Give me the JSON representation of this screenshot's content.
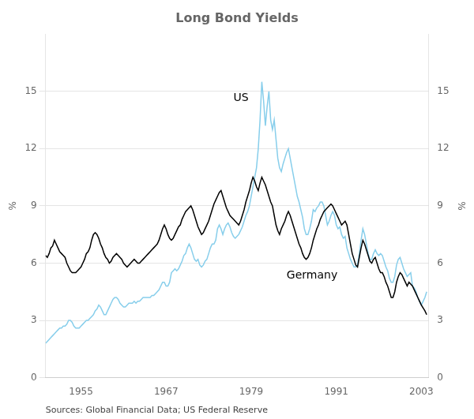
{
  "chart_data": {
    "type": "line",
    "title": "Long Bond Yields",
    "ylabel": "%",
    "y2label": "%",
    "xlim": [
      1950,
      2004
    ],
    "xticks": [
      1955,
      1967,
      1979,
      1991,
      2003
    ],
    "ylim": [
      0,
      18
    ],
    "yticks": [
      0,
      3,
      6,
      9,
      12,
      15
    ],
    "y2lim": [
      0,
      18
    ],
    "y2ticks": [
      0,
      3,
      6,
      9,
      12,
      15
    ],
    "grid": "y",
    "annotations": [
      {
        "text": "US",
        "x": 1976.5,
        "y": 14.5
      },
      {
        "text": "Germany",
        "x": 1984,
        "y": 5.2
      },
      {
        "text": "Sources: Global Financial Data; US Federal Reserve"
      }
    ],
    "x": [
      1950,
      1950.25,
      1950.5,
      1950.75,
      1951,
      1951.25,
      1951.5,
      1951.75,
      1952,
      1952.25,
      1952.5,
      1952.75,
      1953,
      1953.25,
      1953.5,
      1953.75,
      1954,
      1954.25,
      1954.5,
      1954.75,
      1955,
      1955.25,
      1955.5,
      1955.75,
      1956,
      1956.25,
      1956.5,
      1956.75,
      1957,
      1957.25,
      1957.5,
      1957.75,
      1958,
      1958.25,
      1958.5,
      1958.75,
      1959,
      1959.25,
      1959.5,
      1959.75,
      1960,
      1960.25,
      1960.5,
      1960.75,
      1961,
      1961.25,
      1961.5,
      1961.75,
      1962,
      1962.25,
      1962.5,
      1962.75,
      1963,
      1963.25,
      1963.5,
      1963.75,
      1964,
      1964.25,
      1964.5,
      1964.75,
      1965,
      1965.25,
      1965.5,
      1965.75,
      1966,
      1966.25,
      1966.5,
      1966.75,
      1967,
      1967.25,
      1967.5,
      1967.75,
      1968,
      1968.25,
      1968.5,
      1968.75,
      1969,
      1969.25,
      1969.5,
      1969.75,
      1970,
      1970.25,
      1970.5,
      1970.75,
      1971,
      1971.25,
      1971.5,
      1971.75,
      1972,
      1972.25,
      1972.5,
      1972.75,
      1973,
      1973.25,
      1973.5,
      1973.75,
      1974,
      1974.25,
      1974.5,
      1974.75,
      1975,
      1975.25,
      1975.5,
      1975.75,
      1976,
      1976.25,
      1976.5,
      1976.75,
      1977,
      1977.25,
      1977.5,
      1977.75,
      1978,
      1978.25,
      1978.5,
      1978.75,
      1979,
      1979.25,
      1979.5,
      1979.75,
      1980,
      1980.25,
      1980.5,
      1980.75,
      1981,
      1981.25,
      1981.5,
      1981.75,
      1982,
      1982.25,
      1982.5,
      1982.75,
      1983,
      1983.25,
      1983.5,
      1983.75,
      1984,
      1984.25,
      1984.5,
      1984.75,
      1985,
      1985.25,
      1985.5,
      1985.75,
      1986,
      1986.25,
      1986.5,
      1986.75,
      1987,
      1987.25,
      1987.5,
      1987.75,
      1988,
      1988.25,
      1988.5,
      1988.75,
      1989,
      1989.25,
      1989.5,
      1989.75,
      1990,
      1990.25,
      1990.5,
      1990.75,
      1991,
      1991.25,
      1991.5,
      1991.75,
      1992,
      1992.25,
      1992.5,
      1992.75,
      1993,
      1993.25,
      1993.5,
      1993.75,
      1994,
      1994.25,
      1994.5,
      1994.75,
      1995,
      1995.25,
      1995.5,
      1995.75,
      1996,
      1996.25,
      1996.5,
      1996.75,
      1997,
      1997.25,
      1997.5,
      1997.75,
      1998,
      1998.25,
      1998.5,
      1998.75,
      1999,
      1999.25,
      1999.5,
      1999.75,
      2000,
      2000.25,
      2000.5,
      2000.75,
      2001,
      2001.25,
      2001.5,
      2001.75,
      2002,
      2002.25,
      2002.5,
      2002.75,
      2003,
      2003.5,
      2003.75
    ],
    "series": [
      {
        "name": "Germany",
        "color": "#000000",
        "values": [
          6.4,
          6.3,
          6.5,
          6.8,
          6.9,
          7.2,
          7.0,
          6.8,
          6.6,
          6.5,
          6.4,
          6.3,
          6.0,
          5.8,
          5.6,
          5.5,
          5.5,
          5.5,
          5.6,
          5.7,
          5.8,
          6.0,
          6.2,
          6.5,
          6.6,
          6.8,
          7.2,
          7.5,
          7.6,
          7.5,
          7.3,
          7.0,
          6.8,
          6.5,
          6.3,
          6.2,
          6.0,
          6.1,
          6.3,
          6.4,
          6.5,
          6.4,
          6.3,
          6.2,
          6.0,
          5.9,
          5.8,
          5.9,
          6.0,
          6.1,
          6.2,
          6.1,
          6.0,
          6.0,
          6.1,
          6.2,
          6.3,
          6.4,
          6.5,
          6.6,
          6.7,
          6.8,
          6.9,
          7.0,
          7.2,
          7.5,
          7.8,
          8.0,
          7.8,
          7.5,
          7.3,
          7.2,
          7.3,
          7.5,
          7.7,
          7.9,
          8.0,
          8.3,
          8.5,
          8.7,
          8.8,
          8.9,
          9.0,
          8.8,
          8.5,
          8.2,
          7.9,
          7.7,
          7.5,
          7.6,
          7.8,
          8.0,
          8.2,
          8.5,
          8.8,
          9.1,
          9.3,
          9.5,
          9.7,
          9.8,
          9.5,
          9.2,
          8.9,
          8.7,
          8.5,
          8.4,
          8.3,
          8.2,
          8.1,
          8.0,
          8.2,
          8.5,
          8.8,
          9.2,
          9.5,
          9.8,
          10.2,
          10.5,
          10.3,
          10.0,
          9.8,
          10.2,
          10.5,
          10.3,
          10.1,
          9.8,
          9.5,
          9.2,
          9.0,
          8.5,
          8.0,
          7.7,
          7.5,
          7.8,
          8.0,
          8.2,
          8.5,
          8.7,
          8.5,
          8.2,
          7.9,
          7.6,
          7.3,
          7.0,
          6.8,
          6.5,
          6.3,
          6.2,
          6.3,
          6.5,
          6.8,
          7.2,
          7.5,
          7.8,
          8.0,
          8.3,
          8.5,
          8.7,
          8.8,
          8.9,
          9.0,
          9.1,
          9.0,
          8.8,
          8.6,
          8.4,
          8.2,
          8.0,
          8.1,
          8.2,
          8.0,
          7.5,
          7.0,
          6.5,
          6.2,
          5.9,
          5.8,
          6.3,
          6.8,
          7.2,
          7.0,
          6.7,
          6.4,
          6.1,
          6.0,
          6.2,
          6.3,
          6.0,
          5.7,
          5.5,
          5.5,
          5.3,
          5.0,
          4.8,
          4.5,
          4.2,
          4.2,
          4.5,
          5.0,
          5.3,
          5.5,
          5.4,
          5.2,
          5.0,
          4.8,
          5.0,
          4.9,
          4.8,
          4.6,
          4.4,
          4.2,
          4.0,
          3.8,
          3.5,
          3.3
        ]
      },
      {
        "name": "US",
        "color": "#87CEEB",
        "values": [
          1.8,
          1.9,
          2.0,
          2.1,
          2.2,
          2.3,
          2.4,
          2.5,
          2.6,
          2.6,
          2.7,
          2.7,
          2.8,
          3.0,
          3.0,
          2.9,
          2.7,
          2.6,
          2.6,
          2.6,
          2.7,
          2.8,
          2.9,
          3.0,
          3.0,
          3.1,
          3.2,
          3.3,
          3.5,
          3.6,
          3.8,
          3.7,
          3.5,
          3.3,
          3.3,
          3.5,
          3.7,
          3.9,
          4.1,
          4.2,
          4.2,
          4.1,
          3.9,
          3.8,
          3.7,
          3.7,
          3.8,
          3.9,
          3.9,
          3.9,
          4.0,
          3.9,
          4.0,
          4.0,
          4.1,
          4.2,
          4.2,
          4.2,
          4.2,
          4.2,
          4.3,
          4.3,
          4.4,
          4.5,
          4.6,
          4.8,
          5.0,
          5.0,
          4.8,
          4.8,
          5.0,
          5.5,
          5.6,
          5.7,
          5.6,
          5.7,
          5.9,
          6.1,
          6.4,
          6.5,
          6.8,
          7.0,
          6.8,
          6.5,
          6.2,
          6.1,
          6.2,
          5.9,
          5.8,
          5.9,
          6.1,
          6.2,
          6.5,
          6.8,
          7.0,
          7.0,
          7.2,
          7.8,
          8.0,
          7.8,
          7.5,
          7.8,
          8.0,
          8.1,
          7.9,
          7.6,
          7.4,
          7.3,
          7.4,
          7.5,
          7.7,
          7.9,
          8.2,
          8.5,
          8.7,
          9.0,
          9.5,
          10.0,
          10.5,
          11.0,
          12.0,
          13.5,
          15.5,
          14.5,
          13.2,
          14.2,
          15.0,
          13.5,
          13.0,
          13.5,
          12.5,
          11.5,
          11.0,
          10.8,
          11.2,
          11.5,
          11.8,
          12.0,
          11.5,
          11.0,
          10.5,
          10.0,
          9.5,
          9.2,
          8.8,
          8.4,
          7.8,
          7.5,
          7.5,
          7.8,
          8.2,
          8.8,
          8.7,
          8.9,
          9.0,
          9.2,
          9.2,
          9.0,
          8.5,
          8.0,
          8.2,
          8.5,
          8.7,
          8.5,
          8.0,
          7.8,
          7.9,
          7.5,
          7.3,
          7.4,
          6.8,
          6.5,
          6.2,
          6.0,
          5.8,
          5.8,
          5.9,
          6.5,
          7.2,
          7.8,
          7.5,
          7.0,
          6.5,
          6.2,
          6.2,
          6.5,
          6.7,
          6.5,
          6.4,
          6.5,
          6.4,
          6.1,
          5.8,
          5.6,
          5.2,
          5.0,
          5.0,
          5.3,
          5.9,
          6.2,
          6.3,
          6.0,
          5.7,
          5.5,
          5.3,
          5.4,
          5.5,
          4.8,
          4.7,
          4.5,
          4.2,
          4.0,
          3.8,
          4.2,
          4.5
        ]
      }
    ]
  }
}
